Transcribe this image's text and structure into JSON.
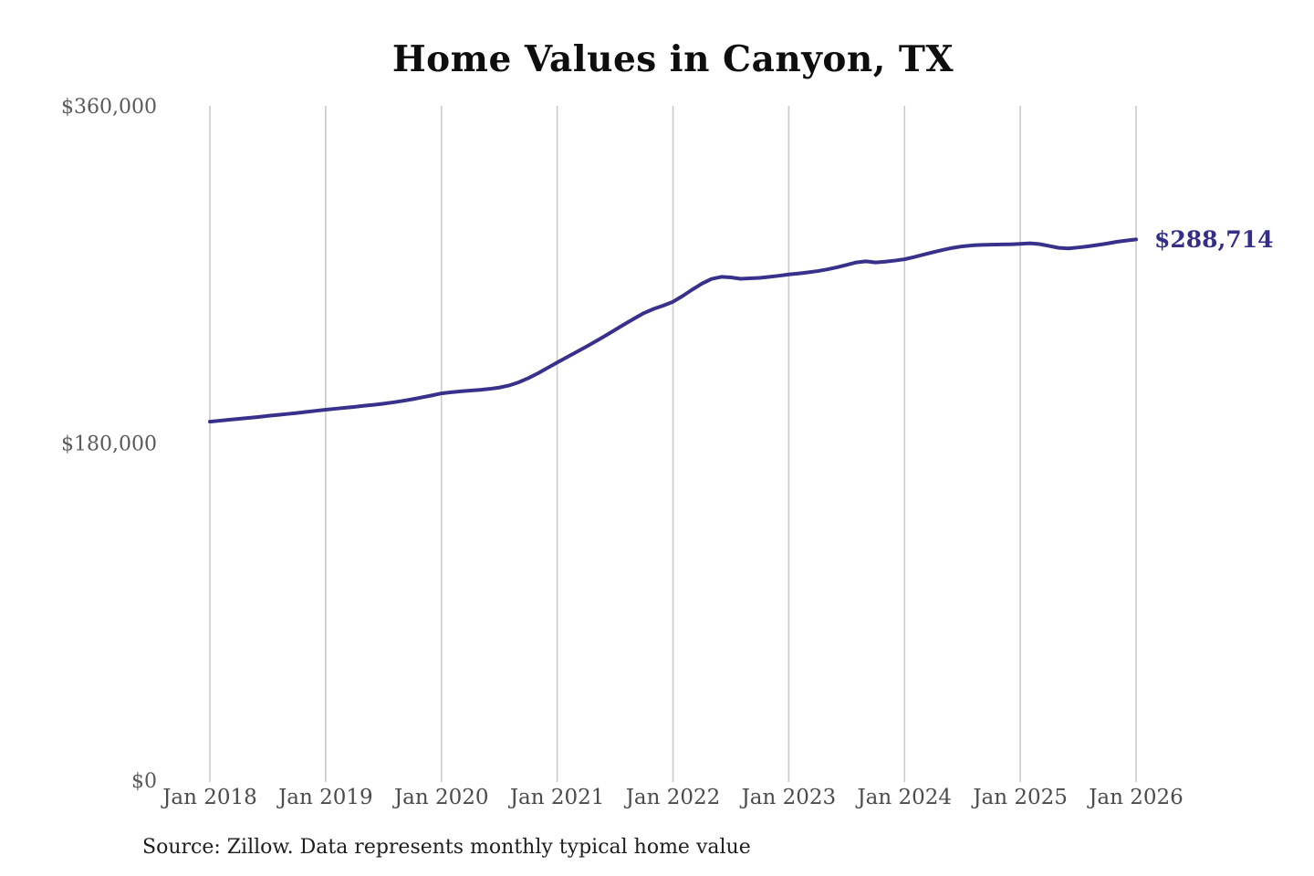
{
  "title": "Home Values in Canyon, TX",
  "final_value_label": "$288,714",
  "source_note": "Source: Zillow. Data represents monthly typical home value",
  "colors": {
    "line": "#38318c",
    "final_label": "#332e87",
    "grid": "#cbcbcb",
    "y_tick_text": "#595959",
    "x_tick_text": "#4b4b4b",
    "title_text": "#0e0e0e",
    "source_text": "#1e1e1e",
    "background": "#ffffff"
  },
  "chart_data": {
    "type": "line",
    "title": "Home Values in Canyon, TX",
    "xlabel": "",
    "ylabel": "",
    "interval": "monthly",
    "x_start": "Jan 2018",
    "x_end": "Jan 2026",
    "ylim": [
      0,
      360000
    ],
    "grid": "vertical-only",
    "legend": "none",
    "x_tick_labels": [
      "Jan 2018",
      "Jan 2019",
      "Jan 2020",
      "Jan 2021",
      "Jan 2022",
      "Jan 2023",
      "Jan 2024",
      "Jan 2025",
      "Jan 2026"
    ],
    "y_ticks": [
      {
        "value": 0,
        "label": "$0"
      },
      {
        "value": 180000,
        "label": "$180,000"
      },
      {
        "value": 360000,
        "label": "$360,000"
      }
    ],
    "final_value": 288714,
    "series": [
      {
        "name": "Monthly typical home value",
        "values": [
          191400,
          191900,
          192400,
          192900,
          193400,
          193900,
          194500,
          195000,
          195500,
          196000,
          196600,
          197200,
          197800,
          198300,
          198800,
          199300,
          199900,
          200400,
          201000,
          201700,
          202500,
          203400,
          204400,
          205400,
          206500,
          207100,
          207600,
          208000,
          208400,
          208900,
          209600,
          210700,
          212400,
          214600,
          217200,
          220100,
          223000,
          225800,
          228600,
          231400,
          234300,
          237300,
          240400,
          243500,
          246500,
          249400,
          251600,
          253400,
          255400,
          258500,
          261900,
          265100,
          267600,
          268700,
          268400,
          267700,
          267900,
          268200,
          268700,
          269300,
          270000,
          270500,
          271100,
          271800,
          272700,
          273800,
          275100,
          276400,
          277000,
          276400,
          276800,
          277400,
          278100,
          279300,
          280600,
          281900,
          283100,
          284200,
          285000,
          285500,
          285800,
          285900,
          286000,
          286100,
          286300,
          286600,
          286200,
          285200,
          284200,
          283900,
          284400,
          285000,
          285700,
          286500,
          287400,
          288100,
          288714
        ]
      }
    ]
  }
}
